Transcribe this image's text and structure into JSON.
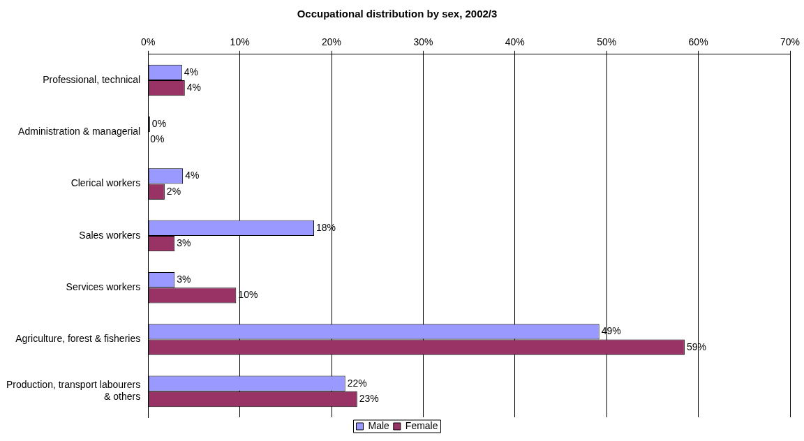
{
  "chart_data": {
    "type": "bar",
    "orientation": "horizontal",
    "title": "Occupational distribution by sex, 2002/3",
    "categories": [
      "Professional, technical",
      "Administration & managerial",
      "Clerical workers",
      "Sales workers",
      "Services workers",
      "Agriculture, forest & fisheries",
      "Production, transport labourers & others"
    ],
    "series": [
      {
        "name": "Male",
        "color": "#9999ff",
        "values": [
          3.7,
          0.2,
          3.8,
          18.1,
          2.9,
          49.2,
          21.5
        ],
        "value_labels": [
          "4%",
          "0%",
          "4%",
          "18%",
          "3%",
          "49%",
          "22%"
        ]
      },
      {
        "name": "Female",
        "color": "#993366",
        "values": [
          4.0,
          0,
          1.8,
          2.9,
          9.6,
          58.5,
          22.8
        ],
        "value_labels": [
          "4%",
          "0%",
          "2%",
          "3%",
          "10%",
          "59%",
          "23%"
        ]
      }
    ],
    "xlim": [
      0,
      70
    ],
    "xticks": [
      {
        "value": 0,
        "label": "0%"
      },
      {
        "value": 10,
        "label": "10%"
      },
      {
        "value": 20,
        "label": "20%"
      },
      {
        "value": 30,
        "label": "30%"
      },
      {
        "value": 40,
        "label": "40%"
      },
      {
        "value": 50,
        "label": "50%"
      },
      {
        "value": 60,
        "label": "60%"
      },
      {
        "value": 70,
        "label": "70%"
      }
    ],
    "grid": "x",
    "legend": "bottom"
  }
}
